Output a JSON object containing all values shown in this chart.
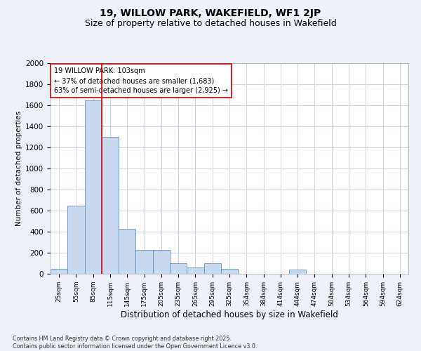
{
  "title1": "19, WILLOW PARK, WAKEFIELD, WF1 2JP",
  "title2": "Size of property relative to detached houses in Wakefield",
  "xlabel": "Distribution of detached houses by size in Wakefield",
  "ylabel": "Number of detached properties",
  "categories": [
    "25sqm",
    "55sqm",
    "85sqm",
    "115sqm",
    "145sqm",
    "175sqm",
    "205sqm",
    "235sqm",
    "265sqm",
    "295sqm",
    "325sqm",
    "354sqm",
    "384sqm",
    "414sqm",
    "444sqm",
    "474sqm",
    "504sqm",
    "534sqm",
    "564sqm",
    "594sqm",
    "624sqm"
  ],
  "values": [
    50,
    650,
    1650,
    1300,
    430,
    230,
    230,
    100,
    60,
    100,
    50,
    0,
    0,
    0,
    40,
    0,
    0,
    0,
    0,
    0,
    0
  ],
  "bar_color": "#c8d8ee",
  "bar_edge_color": "#6090c0",
  "vline_x": 2.5,
  "vline_color": "#cc0000",
  "annotation_line1": "19 WILLOW PARK: 103sqm",
  "annotation_line2": "← 37% of detached houses are smaller (1,683)",
  "annotation_line3": "63% of semi-detached houses are larger (2,925) →",
  "annotation_box_color": "white",
  "annotation_box_edge_color": "#cc0000",
  "ylim": [
    0,
    2000
  ],
  "yticks": [
    0,
    200,
    400,
    600,
    800,
    1000,
    1200,
    1400,
    1600,
    1800,
    2000
  ],
  "footer1": "Contains HM Land Registry data © Crown copyright and database right 2025.",
  "footer2": "Contains public sector information licensed under the Open Government Licence v3.0.",
  "bg_color": "#eef2f8",
  "plot_bg_color": "#ffffff",
  "grid_color": "#c8d4e8",
  "title1_fontsize": 10,
  "title2_fontsize": 9
}
